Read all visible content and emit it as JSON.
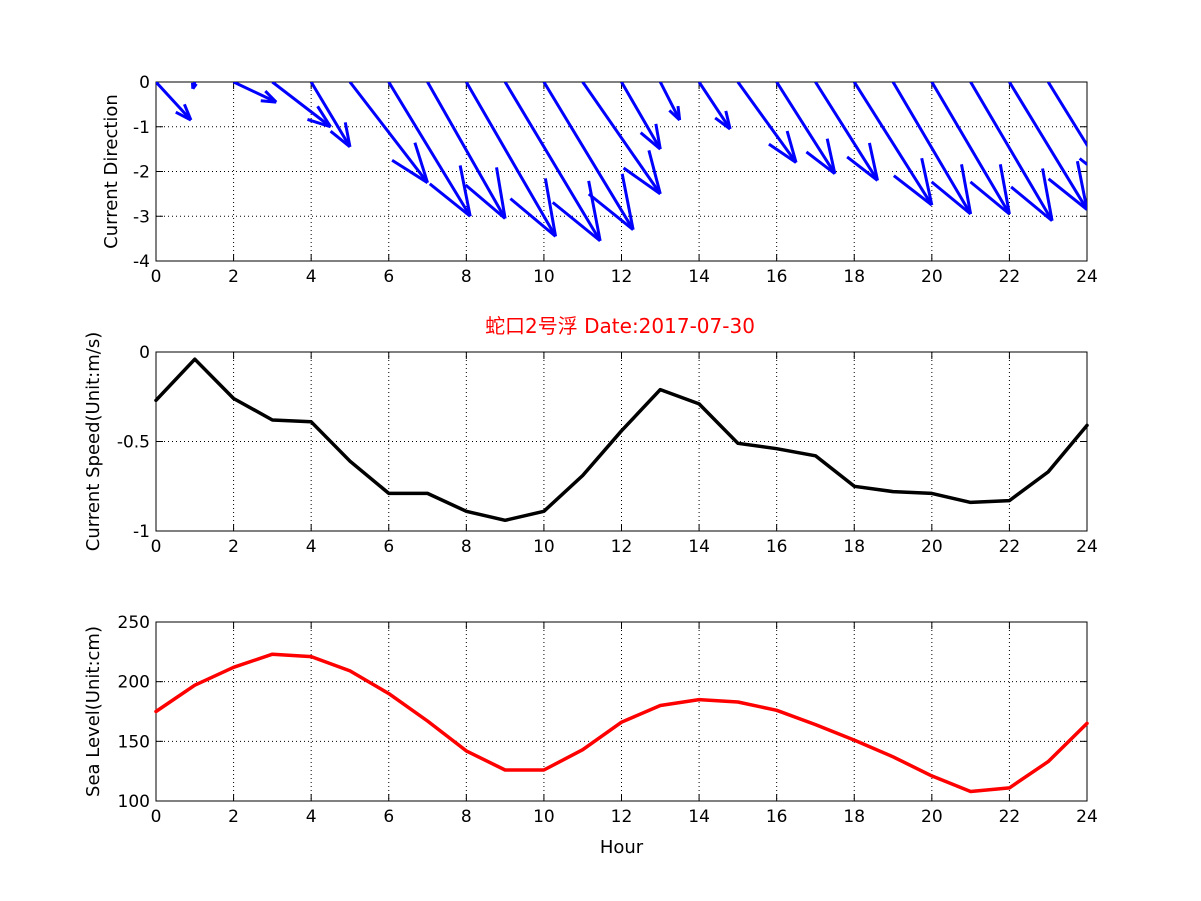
{
  "chart_data": [
    {
      "type": "quiver",
      "ylabel": "Current Direction",
      "xlabel": "",
      "xlim": [
        0,
        24
      ],
      "ylim": [
        -4,
        0
      ],
      "xticks": [
        0,
        2,
        4,
        6,
        8,
        10,
        12,
        14,
        16,
        18,
        20,
        22,
        24
      ],
      "yticks": [
        0,
        -1,
        -2,
        -3,
        -4
      ],
      "grid": true,
      "color": "#0000ff",
      "arrows": [
        {
          "x": 0,
          "y": 0,
          "u": 0.9,
          "v": -0.85
        },
        {
          "x": 1,
          "y": 0,
          "u": -0.05,
          "v": -0.15
        },
        {
          "x": 2,
          "y": 0,
          "u": 1.1,
          "v": -0.45
        },
        {
          "x": 3,
          "y": 0,
          "u": 1.5,
          "v": -1.0
        },
        {
          "x": 4,
          "y": 0,
          "u": 1.0,
          "v": -1.45
        },
        {
          "x": 5,
          "y": 0,
          "u": 2.0,
          "v": -2.25
        },
        {
          "x": 6,
          "y": 0,
          "u": 2.1,
          "v": -3.0
        },
        {
          "x": 7,
          "y": 0,
          "u": 2.0,
          "v": -3.05
        },
        {
          "x": 8,
          "y": 0,
          "u": 2.3,
          "v": -3.45
        },
        {
          "x": 9,
          "y": 0,
          "u": 2.45,
          "v": -3.55
        },
        {
          "x": 10,
          "y": 0,
          "u": 2.3,
          "v": -3.3
        },
        {
          "x": 11,
          "y": 0,
          "u": 2.0,
          "v": -2.5
        },
        {
          "x": 12,
          "y": 0,
          "u": 1.0,
          "v": -1.5
        },
        {
          "x": 13,
          "y": 0,
          "u": 0.5,
          "v": -0.85
        },
        {
          "x": 14,
          "y": 0,
          "u": 0.8,
          "v": -1.05
        },
        {
          "x": 15,
          "y": 0,
          "u": 1.5,
          "v": -1.8
        },
        {
          "x": 16,
          "y": 0,
          "u": 1.5,
          "v": -2.05
        },
        {
          "x": 17,
          "y": 0,
          "u": 1.6,
          "v": -2.2
        },
        {
          "x": 18,
          "y": 0,
          "u": 2.0,
          "v": -2.75
        },
        {
          "x": 19,
          "y": 0,
          "u": 2.0,
          "v": -2.95
        },
        {
          "x": 20,
          "y": 0,
          "u": 2.0,
          "v": -2.95
        },
        {
          "x": 21,
          "y": 0,
          "u": 2.1,
          "v": -3.1
        },
        {
          "x": 22,
          "y": 0,
          "u": 2.0,
          "v": -2.85
        },
        {
          "x": 23,
          "y": 0,
          "u": 1.6,
          "v": -2.25
        }
      ]
    },
    {
      "type": "line",
      "title": "蛇口2号浮   Date:2017-07-30",
      "ylabel": "Current Speed(Unit:m/s)",
      "xlabel": "",
      "xlim": [
        0,
        24
      ],
      "ylim": [
        -1,
        0
      ],
      "xticks": [
        0,
        2,
        4,
        6,
        8,
        10,
        12,
        14,
        16,
        18,
        20,
        22,
        24
      ],
      "yticks": [
        0,
        -0.5,
        -1
      ],
      "yticklabels": [
        "0",
        "-0.5",
        "-1"
      ],
      "grid": true,
      "color": "#000000",
      "title_color": "#ff0000",
      "x": [
        0,
        1,
        2,
        3,
        4,
        5,
        6,
        7,
        8,
        9,
        10,
        11,
        12,
        13,
        14,
        15,
        16,
        17,
        18,
        19,
        20,
        21,
        22,
        23,
        24
      ],
      "y": [
        -0.27,
        -0.04,
        -0.26,
        -0.38,
        -0.39,
        -0.61,
        -0.79,
        -0.79,
        -0.89,
        -0.94,
        -0.89,
        -0.69,
        -0.44,
        -0.21,
        -0.29,
        -0.51,
        -0.54,
        -0.58,
        -0.75,
        -0.78,
        -0.79,
        -0.84,
        -0.83,
        -0.67,
        -0.41
      ]
    },
    {
      "type": "line",
      "ylabel": "Sea Level(Unit:cm)",
      "xlabel": "Hour",
      "xlim": [
        0,
        24
      ],
      "ylim": [
        100,
        250
      ],
      "xticks": [
        0,
        2,
        4,
        6,
        8,
        10,
        12,
        14,
        16,
        18,
        20,
        22,
        24
      ],
      "yticks": [
        100,
        150,
        200,
        250
      ],
      "grid": true,
      "color": "#ff0000",
      "x": [
        0,
        1,
        2,
        3,
        4,
        5,
        6,
        7,
        8,
        9,
        10,
        11,
        12,
        13,
        14,
        15,
        16,
        17,
        18,
        19,
        20,
        21,
        22,
        23,
        24
      ],
      "y": [
        175,
        197,
        212,
        223,
        221,
        209,
        190,
        167,
        142,
        126,
        126,
        143,
        166,
        180,
        185,
        183,
        176,
        164,
        151,
        137,
        121,
        108,
        111,
        133,
        165
      ]
    }
  ]
}
